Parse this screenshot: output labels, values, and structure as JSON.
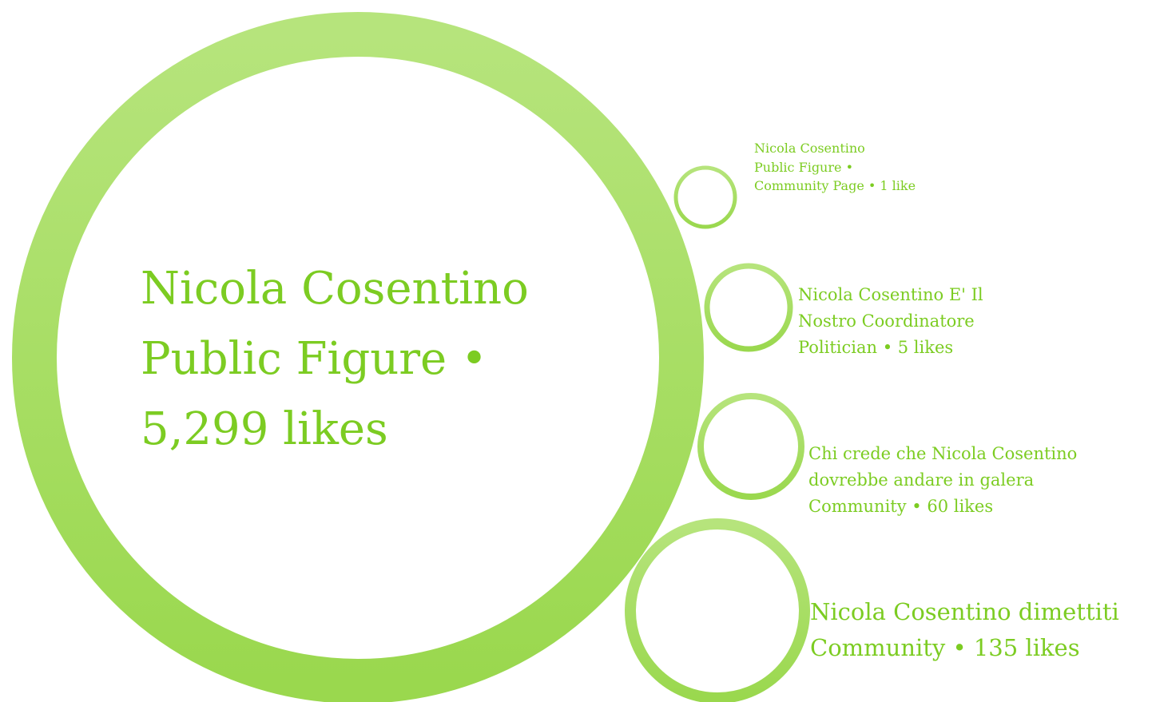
{
  "colors": {
    "ring_light": "#b6e47c",
    "ring_dark": "#9ad84e",
    "text": "#7ccc22",
    "background": "#ffffff"
  },
  "bubbles": [
    {
      "id": "main",
      "lines": [
        "Nicola Cosentino",
        "Public Figure •",
        "5,299 likes"
      ]
    },
    {
      "id": "b1",
      "lines": [
        "Nicola Cosentino",
        "Public Figure •",
        "Community Page • 1 like"
      ]
    },
    {
      "id": "b2",
      "lines": [
        "Nicola Cosentino E' Il",
        "Nostro Coordinatore",
        "Politician • 5 likes"
      ]
    },
    {
      "id": "b3",
      "lines": [
        "Chi crede che Nicola Cosentino",
        "dovrebbe andare in galera",
        "Community • 60 likes"
      ]
    },
    {
      "id": "b4",
      "lines": [
        "Nicola Cosentino dimettiti",
        "Community • 135 likes"
      ]
    }
  ]
}
